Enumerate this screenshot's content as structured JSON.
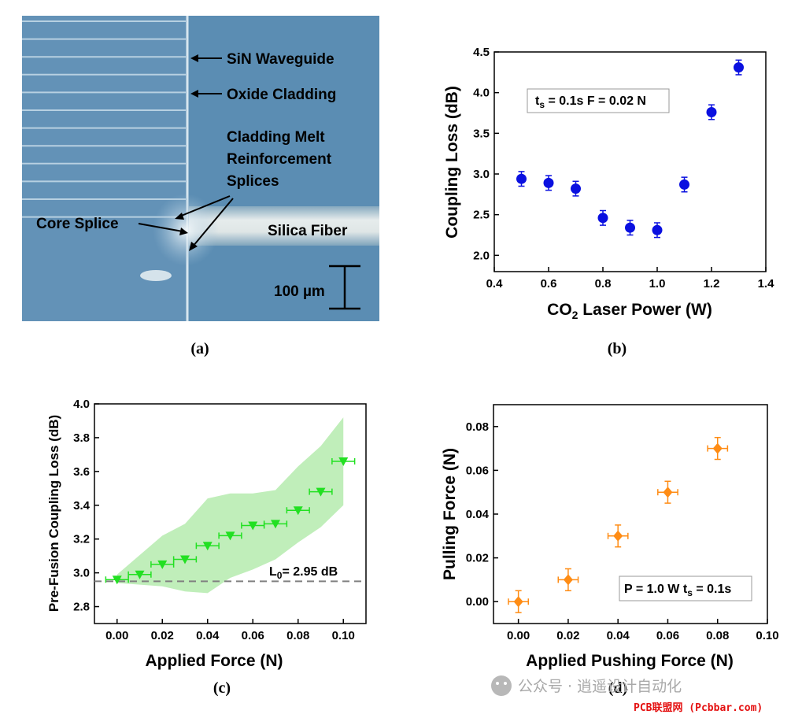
{
  "panel_a": {
    "label": "(a)",
    "annotations": {
      "waveguide": "SiN Waveguide",
      "cladding": "Oxide Cladding",
      "melt_line1": "Cladding Melt",
      "melt_line2": "Reinforcement",
      "melt_line3": "Splices",
      "core_splice": "Core Splice",
      "fiber": "Silica Fiber",
      "scale": "100 µm"
    },
    "colors": {
      "background": "#5f8fb4",
      "waveguide_lines": "#cfe1ee",
      "fiber": "#dfe8ea"
    }
  },
  "chart_data": [
    {
      "panel": "(b)",
      "type": "scatter",
      "xlabel_main": "CO",
      "xlabel_sub": "2",
      "xlabel_rest": " Laser Power (W)",
      "ylabel": "Coupling Loss (dB)",
      "xlim": [
        0.4,
        1.4
      ],
      "ylim": [
        1.8,
        4.5
      ],
      "xticks": [
        "0.4",
        "0.6",
        "0.8",
        "1.0",
        "1.2",
        "1.4"
      ],
      "yticks": [
        "2.0",
        "2.5",
        "3.0",
        "3.5",
        "4.0",
        "4.5"
      ],
      "annotation_t": "t",
      "annotation_sub": "s",
      "annotation_rest": " = 0.1s  F = 0.02 N",
      "color": "#0a10e0",
      "x": [
        0.5,
        0.6,
        0.7,
        0.8,
        0.9,
        1.0,
        1.1,
        1.2,
        1.3
      ],
      "y": [
        2.94,
        2.89,
        2.82,
        2.46,
        2.34,
        2.31,
        2.87,
        3.76,
        4.31
      ],
      "yerr": [
        0.09,
        0.09,
        0.09,
        0.09,
        0.09,
        0.09,
        0.09,
        0.09,
        0.09
      ]
    },
    {
      "panel": "(c)",
      "type": "scatter",
      "xlabel": "Applied Force (N)",
      "ylabel": "Pre-Fusion Coupling Loss (dB)",
      "xlim": [
        -0.01,
        0.11
      ],
      "ylim": [
        2.7,
        4.0
      ],
      "xticks": [
        "0.00",
        "0.02",
        "0.04",
        "0.06",
        "0.08",
        "0.10"
      ],
      "yticks": [
        "2.8",
        "3.0",
        "3.2",
        "3.4",
        "3.6",
        "3.8",
        "4.0"
      ],
      "color": "#22e022",
      "band_color": "#b9ecb2",
      "x": [
        0.0,
        0.01,
        0.02,
        0.03,
        0.04,
        0.05,
        0.06,
        0.07,
        0.08,
        0.09,
        0.1
      ],
      "y": [
        2.96,
        2.99,
        3.05,
        3.08,
        3.16,
        3.22,
        3.28,
        3.29,
        3.37,
        3.48,
        3.66
      ],
      "xerr": [
        0.005,
        0.005,
        0.005,
        0.005,
        0.005,
        0.005,
        0.005,
        0.005,
        0.005,
        0.005,
        0.005
      ],
      "band_x": [
        0.0,
        0.02,
        0.03,
        0.04,
        0.05,
        0.06,
        0.07,
        0.08,
        0.09,
        0.1
      ],
      "band_upper": [
        2.99,
        3.22,
        3.29,
        3.44,
        3.47,
        3.47,
        3.49,
        3.63,
        3.75,
        3.92
      ],
      "band_lower": [
        2.94,
        2.92,
        2.89,
        2.88,
        2.97,
        3.02,
        3.08,
        3.18,
        3.27,
        3.4
      ],
      "reference_line": 2.95,
      "reference_label_L": "L",
      "reference_label_sub": "0",
      "reference_label_rest": "= 2.95 dB"
    },
    {
      "panel": "(d)",
      "type": "scatter",
      "xlabel": "Applied Pushing Force (N)",
      "ylabel": "Pulling Force (N)",
      "xlim": [
        -0.01,
        0.1
      ],
      "ylim": [
        -0.01,
        0.09
      ],
      "xticks": [
        "0.00",
        "0.02",
        "0.04",
        "0.06",
        "0.08",
        "0.10"
      ],
      "yticks": [
        "0.00",
        "0.02",
        "0.04",
        "0.06",
        "0.08"
      ],
      "annotation_main": "P = 1.0 W  t",
      "annotation_sub": "s",
      "annotation_rest": " = 0.1s",
      "color": "#ff8c14",
      "x": [
        0.0,
        0.02,
        0.04,
        0.06,
        0.08
      ],
      "y": [
        0.0,
        0.01,
        0.03,
        0.05,
        0.07
      ],
      "xerr": [
        0.004,
        0.004,
        0.004,
        0.004,
        0.004
      ],
      "yerr": [
        0.005,
        0.005,
        0.005,
        0.005,
        0.005
      ]
    }
  ],
  "watermark": {
    "text": "公众号 · 逍遥设计自动化",
    "site": "PCB联盟网 (Pcbbar.com)"
  }
}
